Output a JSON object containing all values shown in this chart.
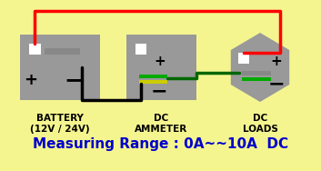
{
  "bg_color": "#f5f590",
  "title_text": "Measuring Range : 0A~~10A  DC",
  "title_color": "#0000cc",
  "title_fontsize": 11,
  "battery_label": "BATTERY\n(12V / 24V)",
  "ammeter_label": "DC\nAMMETER",
  "loads_label": "DC\nLOADS",
  "device_color": "#999999",
  "terminal_color": "#ffffff",
  "red_wire": "#ff0000",
  "black_wire": "#000000",
  "green_wire": "#006600"
}
